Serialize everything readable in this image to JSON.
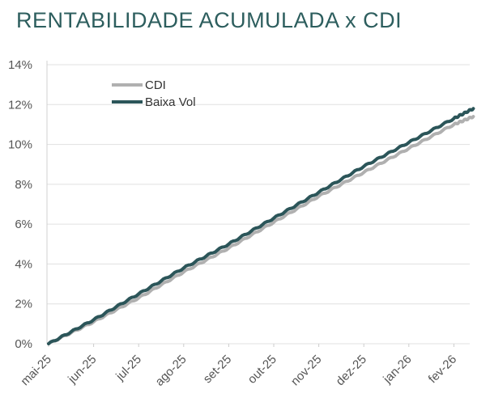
{
  "chart_data": {
    "type": "line",
    "title": "RENTABILIDADE ACUMULADA x CDI",
    "xlabel": "",
    "ylabel": "",
    "categories": [
      "mai-25",
      "jun-25",
      "jul-25",
      "ago-25",
      "set-25",
      "out-25",
      "nov-25",
      "dez-25",
      "jan-26",
      "fev-26"
    ],
    "yticks": [
      "0%",
      "2%",
      "4%",
      "6%",
      "8%",
      "10%",
      "12%",
      "14%"
    ],
    "ylim": [
      0,
      14
    ],
    "grid": true,
    "legend_position": "top-left",
    "series": [
      {
        "name": "CDI",
        "color": "#b0b0b0",
        "x": [
          "mai-25",
          "jun-25",
          "jul-25",
          "ago-25",
          "set-25",
          "out-25",
          "nov-25",
          "dez-25",
          "jan-26",
          "fev-26",
          "fev-26 (end)"
        ],
        "values": [
          0.0,
          1.1,
          2.3,
          3.6,
          4.8,
          6.1,
          7.4,
          8.6,
          9.8,
          11.0,
          11.4
        ]
      },
      {
        "name": "Baixa Vol",
        "color": "#2b5559",
        "x": [
          "mai-25",
          "jun-25",
          "jul-25",
          "ago-25",
          "set-25",
          "out-25",
          "nov-25",
          "dez-25",
          "jan-26",
          "fev-26",
          "fev-26 (end)"
        ],
        "values": [
          0.0,
          1.2,
          2.5,
          3.8,
          5.0,
          6.3,
          7.6,
          8.9,
          10.1,
          11.3,
          11.8
        ]
      }
    ]
  }
}
